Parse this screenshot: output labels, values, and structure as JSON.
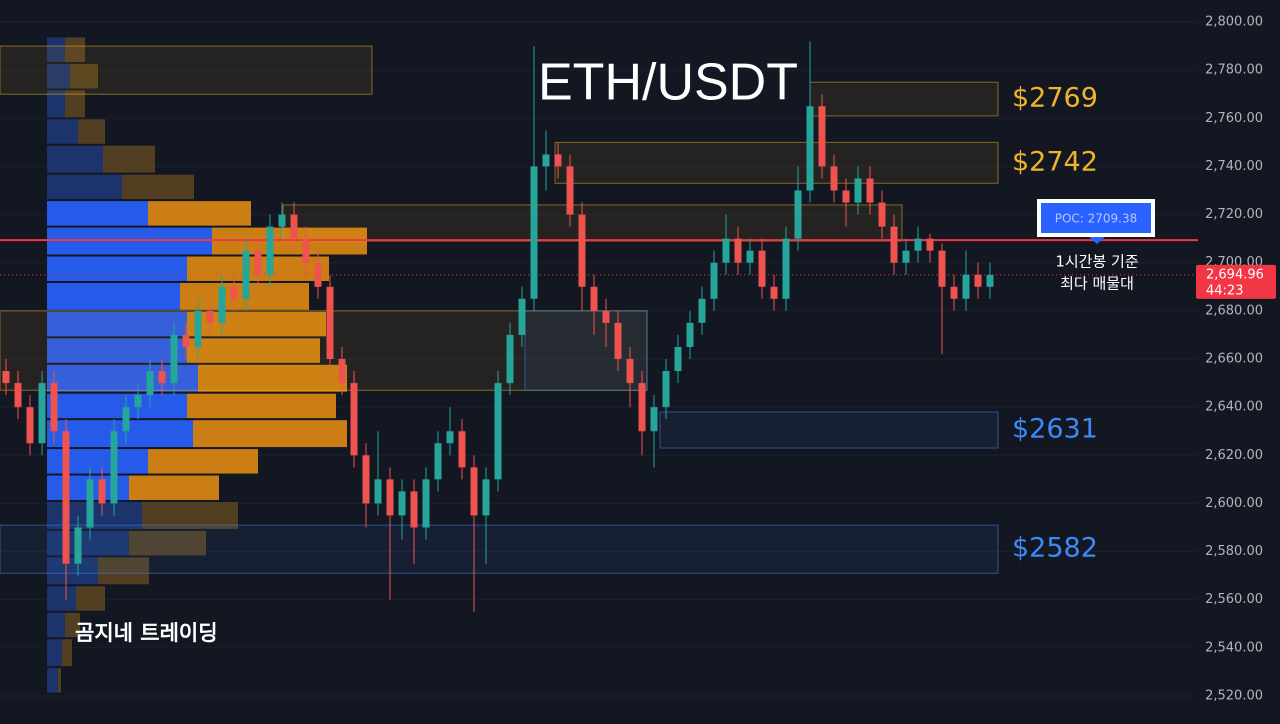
{
  "chart_data": {
    "type": "candlestick",
    "title": "ETH/USDT",
    "watermark": "곰지네 트레이딩",
    "annotation": [
      "1시간봉 기준",
      "최다 매물대"
    ],
    "up_color": "#26a69a",
    "down_color": "#ef5350",
    "grid": true,
    "ylim": [
      2510,
      2805
    ],
    "yticks": [
      {
        "value": 2520,
        "label": "2,520.00"
      },
      {
        "value": 2540,
        "label": "2,540.00"
      },
      {
        "value": 2560,
        "label": "2,560.00"
      },
      {
        "value": 2580,
        "label": "2,580.00"
      },
      {
        "value": 2600,
        "label": "2,600.00"
      },
      {
        "value": 2620,
        "label": "2,620.00"
      },
      {
        "value": 2640,
        "label": "2,640.00"
      },
      {
        "value": 2660,
        "label": "2,660.00"
      },
      {
        "value": 2680,
        "label": "2,680.00"
      },
      {
        "value": 2700,
        "label": "2,700.00"
      },
      {
        "value": 2720,
        "label": "2,720.00"
      },
      {
        "value": 2740,
        "label": "2,740.00"
      },
      {
        "value": 2760,
        "label": "2,760.00"
      },
      {
        "value": 2780,
        "label": "2,780.00"
      },
      {
        "value": 2800,
        "label": "2,800.00"
      }
    ],
    "last_price": {
      "value": 2694.96,
      "label": "2,694.96"
    },
    "countdown": "44:23",
    "poc": {
      "value": 2709.38,
      "label": "POC: 2709.38"
    },
    "zones": [
      {
        "label": "$2769",
        "low": 2761,
        "high": 2775,
        "color": "#f0b429"
      },
      {
        "label": "$2742",
        "low": 2733,
        "high": 2750,
        "color": "#f0b429"
      },
      {
        "label": "$2631",
        "low": 2623,
        "high": 2638,
        "color": "#3d8af7"
      },
      {
        "label": "$2582",
        "low": 2571,
        "high": 2591,
        "color": "#3d8af7"
      },
      {
        "low": 2770,
        "high": 2790,
        "color": "#f0b429"
      },
      {
        "low": 2709,
        "high": 2724,
        "color": "#f0b429"
      },
      {
        "low": 2647,
        "high": 2680,
        "color": "#f0b429"
      },
      {
        "low": 2647,
        "high": 2680,
        "color": "#3d8af7"
      }
    ],
    "profile": [
      [
        2783,
        18,
        20
      ],
      [
        2772,
        23,
        28
      ],
      [
        2760,
        18,
        20
      ],
      [
        2749,
        31,
        27
      ],
      [
        2737,
        56,
        52
      ],
      [
        2726,
        75,
        72
      ],
      [
        2715,
        101,
        103
      ],
      [
        2703,
        165,
        155
      ],
      [
        2692,
        140,
        142
      ],
      [
        2680,
        133,
        129
      ],
      [
        2669,
        140,
        139
      ],
      [
        2658,
        140,
        133
      ],
      [
        2646,
        151,
        149
      ],
      [
        2635,
        140,
        149
      ],
      [
        2623,
        146,
        154
      ],
      [
        2612,
        101,
        110
      ],
      [
        2601,
        82,
        90
      ],
      [
        2589,
        95,
        96
      ],
      [
        2578,
        82,
        77
      ],
      [
        2566,
        51,
        51
      ],
      [
        2555,
        29,
        29
      ],
      [
        2544,
        18,
        15
      ],
      [
        2532,
        15,
        10
      ],
      [
        2521,
        11,
        3
      ]
    ],
    "candles": [
      [
        2655,
        2660,
        2645,
        2650
      ],
      [
        2650,
        2655,
        2635,
        2640
      ],
      [
        2640,
        2645,
        2620,
        2625
      ],
      [
        2625,
        2655,
        2620,
        2650
      ],
      [
        2650,
        2655,
        2625,
        2630
      ],
      [
        2630,
        2635,
        2560,
        2575
      ],
      [
        2575,
        2595,
        2570,
        2590
      ],
      [
        2590,
        2615,
        2585,
        2610
      ],
      [
        2610,
        2615,
        2595,
        2600
      ],
      [
        2600,
        2635,
        2595,
        2630
      ],
      [
        2630,
        2645,
        2625,
        2640
      ],
      [
        2640,
        2650,
        2635,
        2645
      ],
      [
        2645,
        2660,
        2640,
        2655
      ],
      [
        2655,
        2660,
        2645,
        2650
      ],
      [
        2650,
        2675,
        2645,
        2670
      ],
      [
        2670,
        2675,
        2660,
        2665
      ],
      [
        2665,
        2685,
        2660,
        2680
      ],
      [
        2680,
        2685,
        2670,
        2675
      ],
      [
        2675,
        2695,
        2670,
        2690
      ],
      [
        2690,
        2695,
        2680,
        2685
      ],
      [
        2685,
        2710,
        2680,
        2705
      ],
      [
        2705,
        2710,
        2690,
        2695
      ],
      [
        2695,
        2720,
        2690,
        2715
      ],
      [
        2715,
        2725,
        2710,
        2720
      ],
      [
        2720,
        2725,
        2705,
        2710
      ],
      [
        2710,
        2715,
        2695,
        2700
      ],
      [
        2700,
        2705,
        2685,
        2690
      ],
      [
        2690,
        2695,
        2655,
        2660
      ],
      [
        2660,
        2665,
        2645,
        2650
      ],
      [
        2650,
        2655,
        2615,
        2620
      ],
      [
        2620,
        2625,
        2590,
        2600
      ],
      [
        2600,
        2630,
        2595,
        2610
      ],
      [
        2610,
        2615,
        2560,
        2595
      ],
      [
        2595,
        2610,
        2585,
        2605
      ],
      [
        2605,
        2610,
        2575,
        2590
      ],
      [
        2590,
        2615,
        2585,
        2610
      ],
      [
        2610,
        2630,
        2605,
        2625
      ],
      [
        2625,
        2640,
        2620,
        2630
      ],
      [
        2630,
        2635,
        2610,
        2615
      ],
      [
        2615,
        2620,
        2555,
        2595
      ],
      [
        2595,
        2615,
        2575,
        2610
      ],
      [
        2610,
        2655,
        2605,
        2650
      ],
      [
        2650,
        2675,
        2645,
        2670
      ],
      [
        2670,
        2690,
        2665,
        2685
      ],
      [
        2685,
        2790,
        2680,
        2740
      ],
      [
        2740,
        2755,
        2730,
        2745
      ],
      [
        2745,
        2750,
        2735,
        2740
      ],
      [
        2740,
        2745,
        2715,
        2720
      ],
      [
        2720,
        2725,
        2680,
        2690
      ],
      [
        2690,
        2695,
        2670,
        2680
      ],
      [
        2680,
        2685,
        2665,
        2675
      ],
      [
        2675,
        2680,
        2655,
        2660
      ],
      [
        2660,
        2665,
        2640,
        2650
      ],
      [
        2650,
        2655,
        2620,
        2630
      ],
      [
        2630,
        2645,
        2615,
        2640
      ],
      [
        2640,
        2660,
        2635,
        2655
      ],
      [
        2655,
        2670,
        2650,
        2665
      ],
      [
        2665,
        2680,
        2660,
        2675
      ],
      [
        2675,
        2690,
        2670,
        2685
      ],
      [
        2685,
        2705,
        2680,
        2700
      ],
      [
        2700,
        2720,
        2695,
        2710
      ],
      [
        2710,
        2715,
        2695,
        2700
      ],
      [
        2700,
        2710,
        2695,
        2705
      ],
      [
        2705,
        2710,
        2685,
        2690
      ],
      [
        2690,
        2695,
        2680,
        2685
      ],
      [
        2685,
        2715,
        2680,
        2710
      ],
      [
        2710,
        2740,
        2705,
        2730
      ],
      [
        2730,
        2792,
        2725,
        2765
      ],
      [
        2765,
        2770,
        2735,
        2740
      ],
      [
        2740,
        2745,
        2725,
        2730
      ],
      [
        2730,
        2735,
        2715,
        2725
      ],
      [
        2725,
        2740,
        2720,
        2735
      ],
      [
        2735,
        2740,
        2720,
        2725
      ],
      [
        2725,
        2730,
        2710,
        2715
      ],
      [
        2715,
        2720,
        2695,
        2700
      ],
      [
        2700,
        2710,
        2695,
        2705
      ],
      [
        2705,
        2715,
        2700,
        2710
      ],
      [
        2710,
        2712,
        2700,
        2705
      ],
      [
        2705,
        2708,
        2662,
        2690
      ],
      [
        2690,
        2695,
        2680,
        2685
      ],
      [
        2685,
        2705,
        2680,
        2695
      ],
      [
        2695,
        2700,
        2685,
        2690
      ],
      [
        2690,
        2700,
        2685,
        2694.96
      ]
    ]
  }
}
